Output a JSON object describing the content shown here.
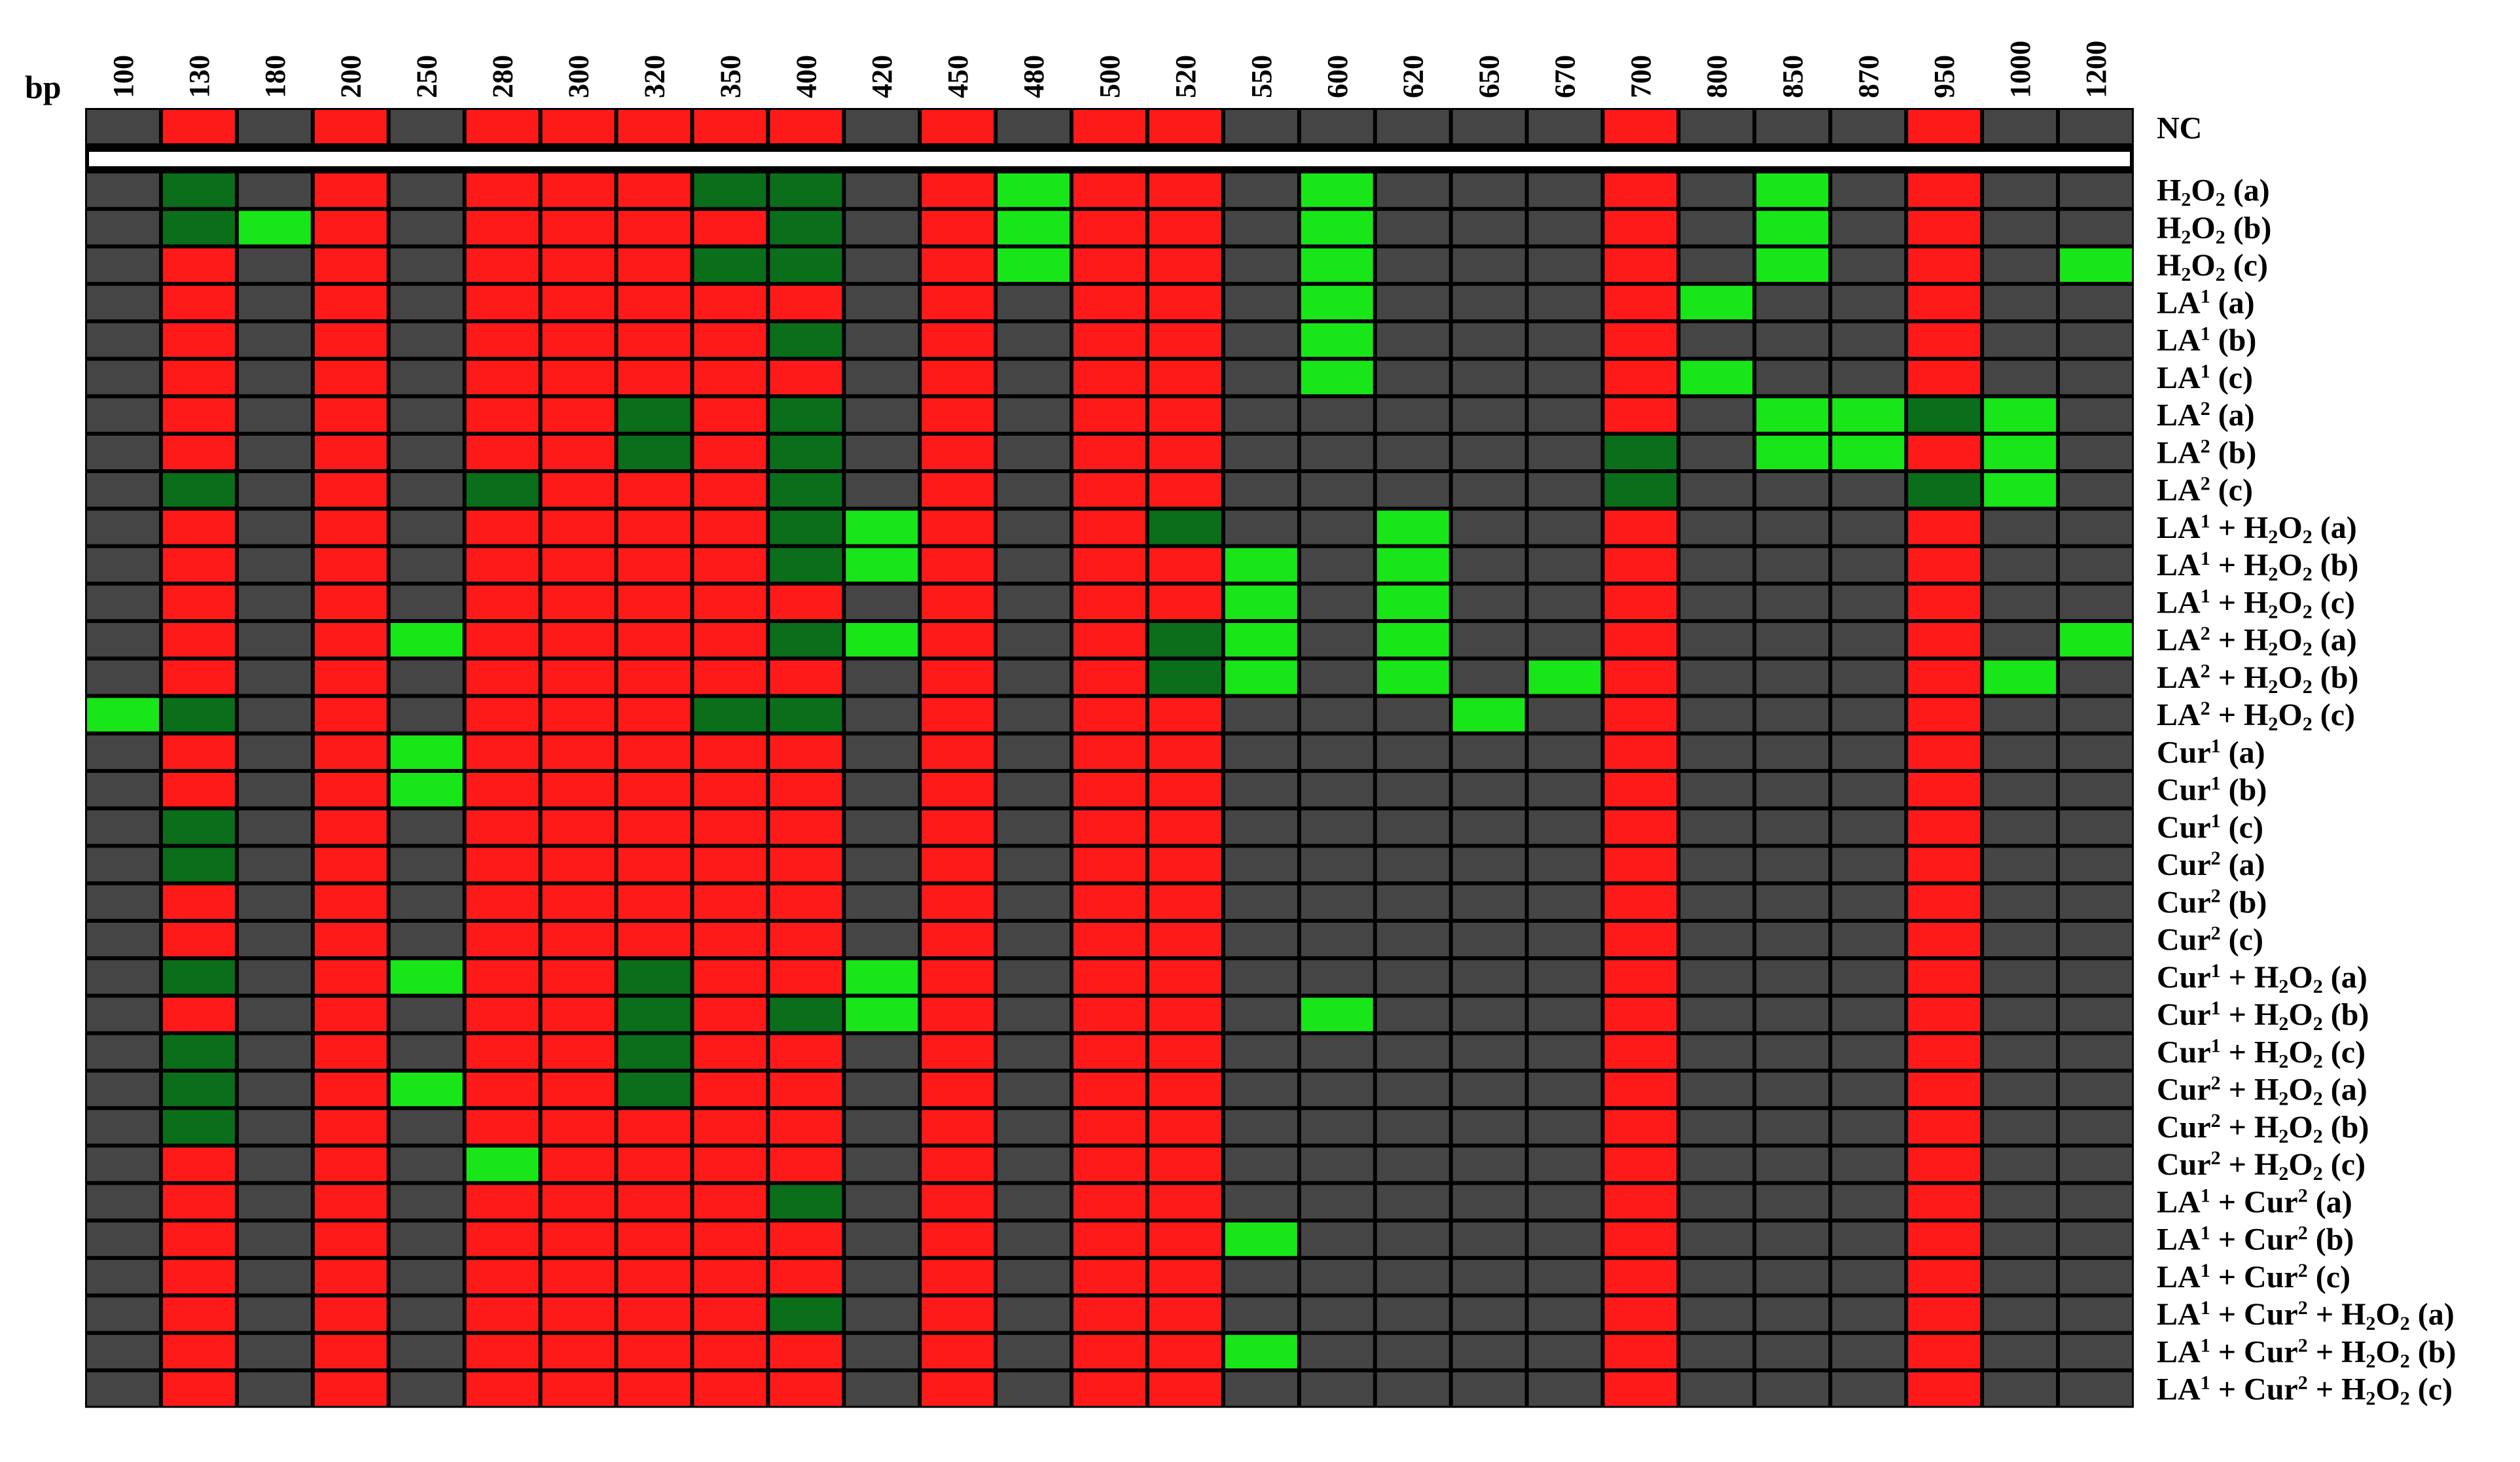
{
  "chart_data": {
    "type": "heatmap",
    "unit_label": "bp",
    "columns": [
      "100",
      "130",
      "180",
      "200",
      "250",
      "280",
      "300",
      "320",
      "350",
      "400",
      "420",
      "450",
      "480",
      "500",
      "520",
      "550",
      "600",
      "620",
      "650",
      "670",
      "700",
      "800",
      "850",
      "870",
      "950",
      "1000",
      "1200"
    ],
    "legend_key": {
      "K": "gray (no band)",
      "R": "red",
      "D": "dark green",
      "G": "bright green"
    },
    "colors": {
      "K": "#454545",
      "R": "#ff1a1a",
      "D": "#0b6e1a",
      "G": "#19e619",
      "border": "#000000",
      "separator": "#ffffff"
    },
    "control": {
      "label": "NC",
      "cells": "KRKRKRRRRRKRKRRKKKKKRKKKRKK"
    },
    "rows": [
      {
        "label": "H2O2 (a)",
        "cells": "KDKRKRRRDDKRGRRKGKKKRKGKRKK"
      },
      {
        "label": "H2O2 (b)",
        "cells": "KDGRKRRRRDKRGRRKGKKKRKGKRKK"
      },
      {
        "label": "H2O2 (c)",
        "cells": "KRKRKRRRDDKRGRRKGKKKRKGKRKG"
      },
      {
        "label": "LA1 (a)",
        "cells": "KRKRKRRRRRKRKRRKGKKKRGKKRKK"
      },
      {
        "label": "LA1 (b)",
        "cells": "KRKRKRRRRDKRKRRKGKKKRKKKRKK"
      },
      {
        "label": "LA1 (c)",
        "cells": "KRKRKRRRRRKRKRRKGKKKRGKKRKK"
      },
      {
        "label": "LA2 (a)",
        "cells": "KRKRKRRDRDKRKRRKKKKKRKGGDGK"
      },
      {
        "label": "LA2 (b)",
        "cells": "KRKRKRRDRDKRKRRKKKKKDKGGRGK"
      },
      {
        "label": "LA2 (c)",
        "cells": "KDKRKDRRRDKRKRRKKKKKDKKKDGK"
      },
      {
        "label": "LA1 + H2O2 (a)",
        "cells": "KRKRKRRRRDGRKRDKKGKKRKKKRKK"
      },
      {
        "label": "LA1 + H2O2 (b)",
        "cells": "KRKRKRRRRDGRKRRGKGKKRKKKRKK"
      },
      {
        "label": "LA1 + H2O2 (c)",
        "cells": "KRKRKRRRRRKRKRRGKGKKRKKKRKK"
      },
      {
        "label": "LA2 + H2O2 (a)",
        "cells": "KRKRGRRRRDGRKRDGKGKKRKKKRKG"
      },
      {
        "label": "LA2 + H2O2 (b)",
        "cells": "KRKRKRRRRRKRKRDGKGKGRKKKRGK"
      },
      {
        "label": "LA2 + H2O2 (c)",
        "cells": "GDKRKRRRDDKRKRRKKKGKRKKKRKK"
      },
      {
        "label": "Cur1 (a)",
        "cells": "KRKRGRRRRRKRKRRKKKKKRKKKRKK"
      },
      {
        "label": "Cur1 (b)",
        "cells": "KRKRGRRRRRKRKRRKKKKKRKKKRKK"
      },
      {
        "label": "Cur1 (c)",
        "cells": "KDKRKRRRRRKRKRRKKKKKRKKKRKK"
      },
      {
        "label": "Cur2 (a)",
        "cells": "KDKRKRRRRRKRKRRKKKKKRKKKRKK"
      },
      {
        "label": "Cur2 (b)",
        "cells": "KRKRKRRRRRKRKRRKKKKKRKKKRKK"
      },
      {
        "label": "Cur2 (c)",
        "cells": "KRKRKRRRRRKRKRRKKKKKRKKKRKK"
      },
      {
        "label": "Cur1 + H2O2 (a)",
        "cells": "KDKRGRRDRRGRKRRKKKKKRKKKRKK"
      },
      {
        "label": "Cur1 + H2O2 (b)",
        "cells": "KRKRKRRDRDGRKRRKGKKKRKKKRKK"
      },
      {
        "label": "Cur1 + H2O2 (c)",
        "cells": "KDKRKRRDRRKRKRRKKKKKRKKKRKK"
      },
      {
        "label": "Cur2 + H2O2 (a)",
        "cells": "KDKRGRRDRRKRKRRKKKKKRKKKRKK"
      },
      {
        "label": "Cur2 + H2O2 (b)",
        "cells": "KDKRKRRRRRKRKRRKKKKKRKKKRKK"
      },
      {
        "label": "Cur2 + H2O2 (c)",
        "cells": "KRKRKGRRRRKRKRRKKKKKRKKKRKK"
      },
      {
        "label": "LA1 + Cur2 (a)",
        "cells": "KRKRKRRRRDKRKRRKKKKKRKKKRKK"
      },
      {
        "label": "LA1 + Cur2 (b)",
        "cells": "KRKRKRRRRRKRKRRGKKKKRKKKRKK"
      },
      {
        "label": "LA1 + Cur2 (c)",
        "cells": "KRKRKRRRRRKRKRRKKKKKRKKKRKK"
      },
      {
        "label": "LA1 + Cur2 + H2O2 (a)",
        "cells": "KRKRKRRRRDKRKRRKKKKKRKKKRKK"
      },
      {
        "label": "LA1 + Cur2 + H2O2 (b)",
        "cells": "KRKRKRRRRRKRKRRGKKKKRKKKRKK"
      },
      {
        "label": "LA1 + Cur2 + H2O2 (c)",
        "cells": "KRKRKRRRRRKRKRRKKKKKRKKKRKK"
      }
    ]
  }
}
